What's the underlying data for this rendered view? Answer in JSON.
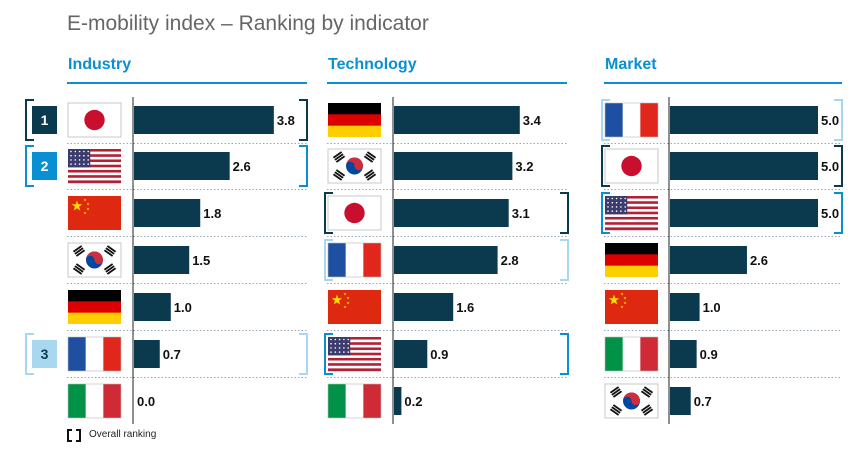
{
  "title": "E-mobility index – Ranking by indicator",
  "legend": {
    "label": "Overall ranking"
  },
  "colors": {
    "bar": "#0b3a4f",
    "accent": "#0a8fd2",
    "rank1": "#0b3a4f",
    "rank2": "#0a8fd2",
    "rank3": "#a8d8f0"
  },
  "chart_data": [
    {
      "type": "bar",
      "title": "Industry",
      "categories": [
        "japan-flag",
        "usa-flag",
        "china-flag",
        "south-korea-flag",
        "germany-flag",
        "france-flag",
        "italy-flag"
      ],
      "values": [
        3.8,
        2.6,
        1.8,
        1.5,
        1.0,
        0.7,
        0.0
      ],
      "labels": [
        "3.8",
        "2.6",
        "1.8",
        "1.5",
        "1.0",
        "0.7",
        "0.0"
      ],
      "overall_rank": [
        1,
        2,
        null,
        null,
        null,
        3,
        null
      ],
      "xlim": [
        0,
        5
      ]
    },
    {
      "type": "bar",
      "title": "Technology",
      "categories": [
        "germany-flag",
        "south-korea-flag",
        "japan-flag",
        "france-flag",
        "china-flag",
        "usa-flag",
        "italy-flag"
      ],
      "values": [
        3.4,
        3.2,
        3.1,
        2.8,
        1.6,
        0.9,
        0.2
      ],
      "labels": [
        "3.4",
        "3.2",
        "3.1",
        "2.8",
        "1.6",
        "0.9",
        "0.2"
      ],
      "overall_rank": [
        null,
        null,
        1,
        3,
        null,
        2,
        null
      ],
      "xlim": [
        0,
        5
      ]
    },
    {
      "type": "bar",
      "title": "Market",
      "categories": [
        "france-flag",
        "japan-flag",
        "usa-flag",
        "germany-flag",
        "china-flag",
        "italy-flag",
        "south-korea-flag"
      ],
      "values": [
        5.0,
        5.0,
        5.0,
        2.6,
        1.0,
        0.9,
        0.7
      ],
      "labels": [
        "5.0",
        "5.0",
        "5.0",
        "2.6",
        "1.0",
        "0.9",
        "0.7"
      ],
      "overall_rank": [
        3,
        1,
        2,
        null,
        null,
        null,
        null
      ],
      "xlim": [
        0,
        5
      ]
    }
  ],
  "rank_badges": [
    {
      "label": "1",
      "rank": 1
    },
    {
      "label": "2",
      "rank": 2
    },
    {
      "label": "3",
      "rank": 3
    }
  ]
}
